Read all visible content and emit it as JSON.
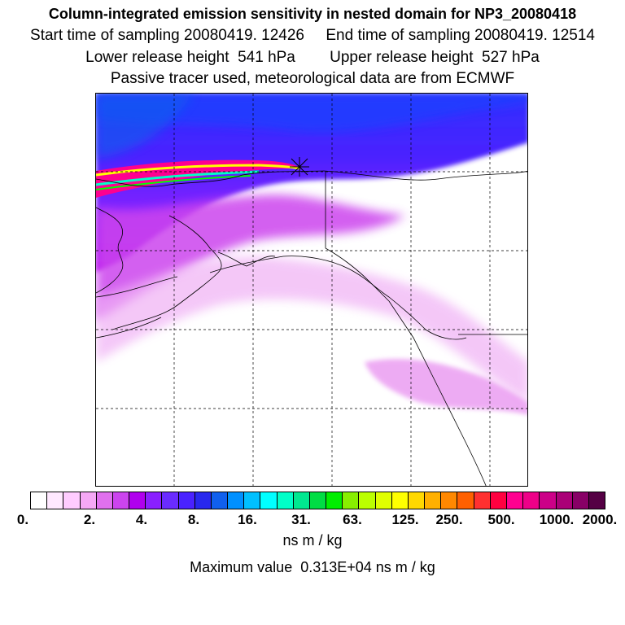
{
  "header": {
    "title": "Column-integrated emission sensitivity in nested domain for NP3_20080418",
    "line2": "Start time of sampling 20080419. 12426     End time of sampling 20080419. 12514",
    "line3": "Lower release height  541 hPa        Upper release height  527 hPa",
    "line4": "Passive tracer used, meteorological data are from ECMWF"
  },
  "map": {
    "release_marker": "release-point-star-icon"
  },
  "colorbar": {
    "colors": [
      "#ffffff",
      "#ffe8ff",
      "#ffccff",
      "#f5a8f5",
      "#e070ee",
      "#cc44ee",
      "#b000ee",
      "#8a20ff",
      "#6a2cff",
      "#4a22ff",
      "#2828ee",
      "#1060ee",
      "#0090ff",
      "#00c0ff",
      "#00ffff",
      "#00ffc8",
      "#00e890",
      "#00dd44",
      "#00ee00",
      "#88ee00",
      "#bbff00",
      "#e0ff00",
      "#ffff00",
      "#ffd800",
      "#ffb000",
      "#ff8800",
      "#ff6000",
      "#ff3030",
      "#ff0040",
      "#ff0090",
      "#ee0088",
      "#cc0088",
      "#aa0077",
      "#880066",
      "#550044"
    ],
    "labels": [
      "0.",
      "2.",
      "4.",
      "8.",
      "16.",
      "31.",
      "63.",
      "125.",
      "250.",
      "500.",
      "1000.",
      "2000."
    ],
    "units": "ns m / kg",
    "max_text": "Maximum value  0.313E+04 ns m / kg"
  }
}
